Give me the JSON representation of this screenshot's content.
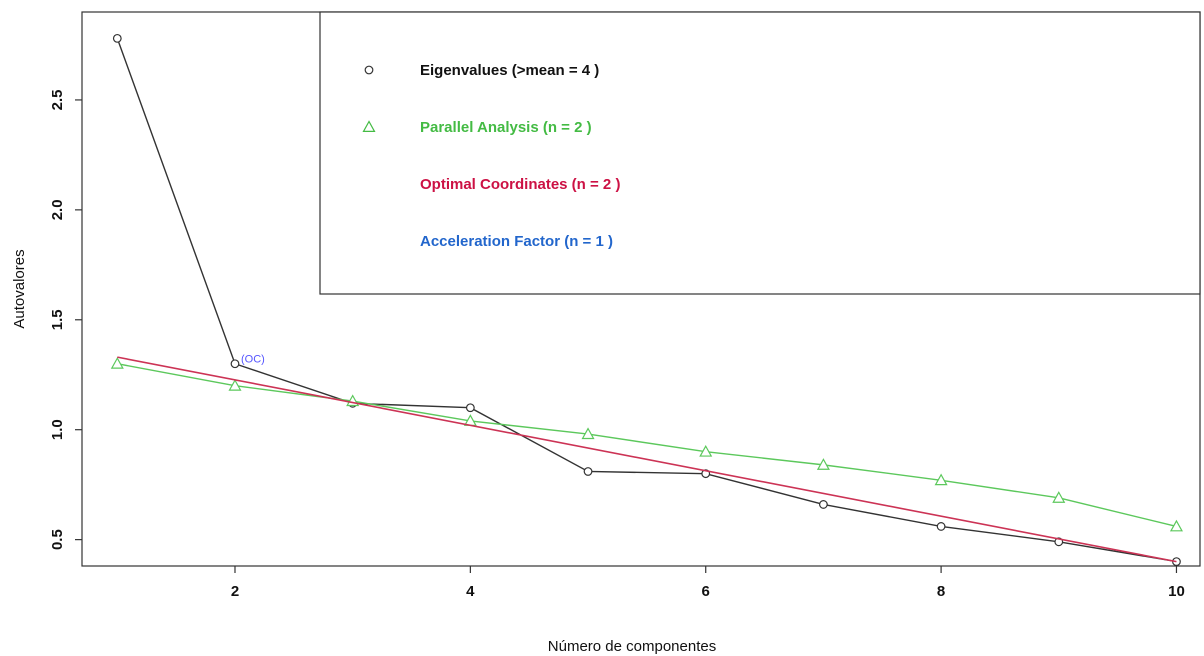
{
  "chart_data": {
    "type": "line",
    "title": "",
    "xlabel": "Número de componentes",
    "ylabel": "Autovalores",
    "xlim": [
      0.7,
      10.2
    ],
    "ylim": [
      0.38,
      2.9
    ],
    "xticks": [
      2,
      4,
      6,
      8,
      10
    ],
    "yticks": [
      0.5,
      1.0,
      1.5,
      2.0,
      2.5
    ],
    "x": [
      1,
      2,
      3,
      4,
      5,
      6,
      7,
      8,
      9,
      10
    ],
    "series": [
      {
        "key": "eigenvalues",
        "values": [
          2.78,
          1.3,
          1.12,
          1.1,
          0.81,
          0.8,
          0.66,
          0.56,
          0.49,
          0.4
        ],
        "color": "#333333",
        "marker": "circle"
      },
      {
        "key": "parallel",
        "values": [
          1.3,
          1.2,
          1.13,
          1.04,
          0.98,
          0.9,
          0.84,
          0.77,
          0.69,
          0.56
        ],
        "color": "#5cc85c",
        "marker": "triangle"
      },
      {
        "key": "optimal",
        "line_from": [
          1,
          1.33
        ],
        "line_to": [
          10,
          0.4
        ],
        "color": "#cc3355"
      }
    ],
    "annotation": {
      "text": "(OC)",
      "x": 2,
      "y": 1.3,
      "color": "#5555ff"
    },
    "legend": {
      "placement": "top-right",
      "items": [
        {
          "label": "Eigenvalues (>mean  =  4 )",
          "color": "#111111",
          "marker": "circle"
        },
        {
          "label": "Parallel Analysis (n =  2 )",
          "color": "#44bb44",
          "marker": "triangle"
        },
        {
          "label": "Optimal Coordinates (n =  2 )",
          "color": "#cc1144",
          "marker": "none"
        },
        {
          "label": "Acceleration Factor (n =  1 )",
          "color": "#2266cc",
          "marker": "none"
        }
      ]
    },
    "grid": false
  }
}
